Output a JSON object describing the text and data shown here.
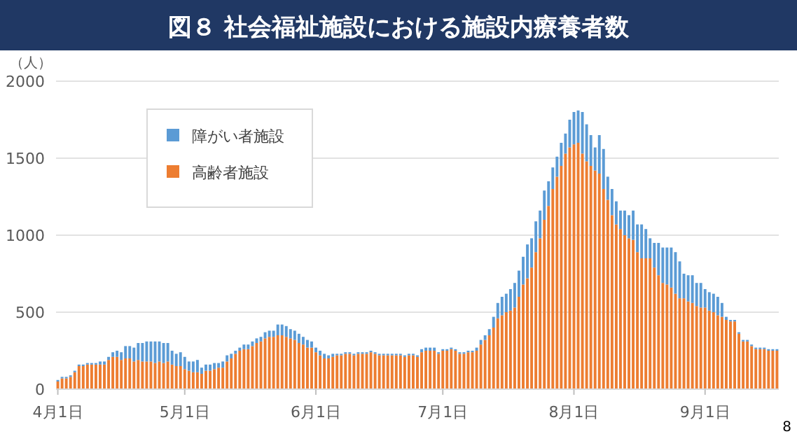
{
  "chart_data": {
    "type": "bar",
    "stacked": true,
    "title": "図８ 社会福祉施設における施設内療養者数",
    "ylabel": "（人）",
    "annotations": [
      "8"
    ],
    "categories": [
      "4月1日",
      null,
      null,
      null,
      null,
      null,
      null,
      null,
      null,
      null,
      null,
      null,
      null,
      null,
      null,
      null,
      null,
      null,
      null,
      null,
      null,
      null,
      null,
      null,
      null,
      null,
      null,
      null,
      null,
      null,
      "5月1日",
      null,
      null,
      null,
      null,
      null,
      null,
      null,
      null,
      null,
      null,
      null,
      null,
      null,
      null,
      null,
      null,
      null,
      null,
      null,
      null,
      null,
      null,
      null,
      null,
      null,
      null,
      null,
      null,
      null,
      null,
      "6月1日",
      null,
      null,
      null,
      null,
      null,
      null,
      null,
      null,
      null,
      null,
      null,
      null,
      null,
      null,
      null,
      null,
      null,
      null,
      null,
      null,
      null,
      null,
      null,
      null,
      null,
      null,
      null,
      null,
      null,
      "7月1日",
      null,
      null,
      null,
      null,
      null,
      null,
      null,
      null,
      null,
      null,
      null,
      null,
      null,
      null,
      null,
      null,
      null,
      null,
      null,
      null,
      null,
      null,
      null,
      null,
      null,
      null,
      null,
      null,
      null,
      null,
      "8月1日",
      null,
      null,
      null,
      null,
      null,
      null,
      null,
      null,
      null,
      null,
      null,
      null,
      null,
      null,
      null,
      null,
      null,
      null,
      null,
      null,
      null,
      null,
      null,
      null,
      null,
      null,
      null,
      null,
      null,
      null,
      "9月1日",
      null,
      null,
      null,
      null,
      null,
      null,
      null,
      null,
      null,
      null,
      null,
      null,
      null,
      null,
      null,
      null,
      null
    ],
    "series": [
      {
        "name": "高齢者施設",
        "color": "#ed7d31",
        "values": [
          50,
          70,
          70,
          80,
          110,
          150,
          150,
          160,
          160,
          160,
          160,
          160,
          190,
          210,
          210,
          190,
          200,
          200,
          180,
          190,
          180,
          180,
          180,
          170,
          180,
          170,
          180,
          160,
          150,
          150,
          130,
          120,
          110,
          110,
          100,
          120,
          120,
          130,
          140,
          140,
          180,
          200,
          230,
          250,
          260,
          260,
          280,
          300,
          310,
          330,
          340,
          340,
          350,
          350,
          340,
          330,
          320,
          300,
          290,
          270,
          270,
          240,
          220,
          200,
          200,
          210,
          220,
          220,
          230,
          230,
          220,
          230,
          230,
          230,
          240,
          230,
          220,
          220,
          220,
          220,
          220,
          220,
          210,
          220,
          220,
          210,
          240,
          250,
          250,
          250,
          230,
          250,
          250,
          260,
          250,
          230,
          230,
          240,
          240,
          250,
          290,
          320,
          350,
          400,
          460,
          480,
          500,
          510,
          530,
          600,
          680,
          720,
          790,
          890,
          980,
          1100,
          1190,
          1300,
          1380,
          1450,
          1530,
          1570,
          1590,
          1600,
          1530,
          1480,
          1450,
          1420,
          1400,
          1300,
          1230,
          1130,
          1070,
          1040,
          1000,
          980,
          970,
          890,
          850,
          850,
          850,
          790,
          740,
          690,
          680,
          660,
          620,
          590,
          590,
          570,
          560,
          540,
          530,
          530,
          510,
          500,
          480,
          470,
          450,
          440,
          440,
          360,
          310,
          310,
          280,
          260,
          260,
          260,
          250,
          250,
          250
        ]
      },
      {
        "name": "障がい者施設",
        "color": "#5b9bd5",
        "values": [
          10,
          10,
          10,
          10,
          10,
          10,
          10,
          10,
          10,
          10,
          20,
          20,
          20,
          30,
          40,
          50,
          80,
          80,
          90,
          110,
          120,
          130,
          130,
          140,
          130,
          130,
          120,
          90,
          80,
          90,
          80,
          60,
          70,
          80,
          40,
          40,
          40,
          40,
          30,
          40,
          40,
          30,
          20,
          20,
          30,
          30,
          30,
          30,
          30,
          40,
          40,
          40,
          70,
          70,
          70,
          60,
          60,
          60,
          50,
          50,
          40,
          30,
          30,
          30,
          20,
          20,
          10,
          10,
          10,
          10,
          10,
          10,
          10,
          10,
          10,
          10,
          10,
          10,
          10,
          10,
          10,
          10,
          10,
          10,
          10,
          10,
          20,
          20,
          20,
          20,
          10,
          10,
          10,
          10,
          10,
          10,
          10,
          10,
          10,
          20,
          30,
          30,
          40,
          70,
          100,
          120,
          120,
          140,
          160,
          170,
          180,
          220,
          190,
          200,
          180,
          190,
          160,
          140,
          130,
          150,
          130,
          180,
          210,
          210,
          270,
          240,
          200,
          150,
          250,
          260,
          150,
          170,
          150,
          120,
          160,
          150,
          190,
          180,
          220,
          190,
          130,
          160,
          210,
          230,
          240,
          260,
          270,
          240,
          160,
          170,
          180,
          150,
          160,
          120,
          120,
          120,
          120,
          90,
          20,
          10,
          10,
          10,
          10,
          10,
          10,
          10,
          10,
          10,
          10,
          10,
          10
        ]
      }
    ],
    "ylim": [
      0,
      2000
    ],
    "yticks": [
      0,
      500,
      1000,
      1500,
      2000
    ],
    "grid": "y",
    "legend": "top left"
  }
}
